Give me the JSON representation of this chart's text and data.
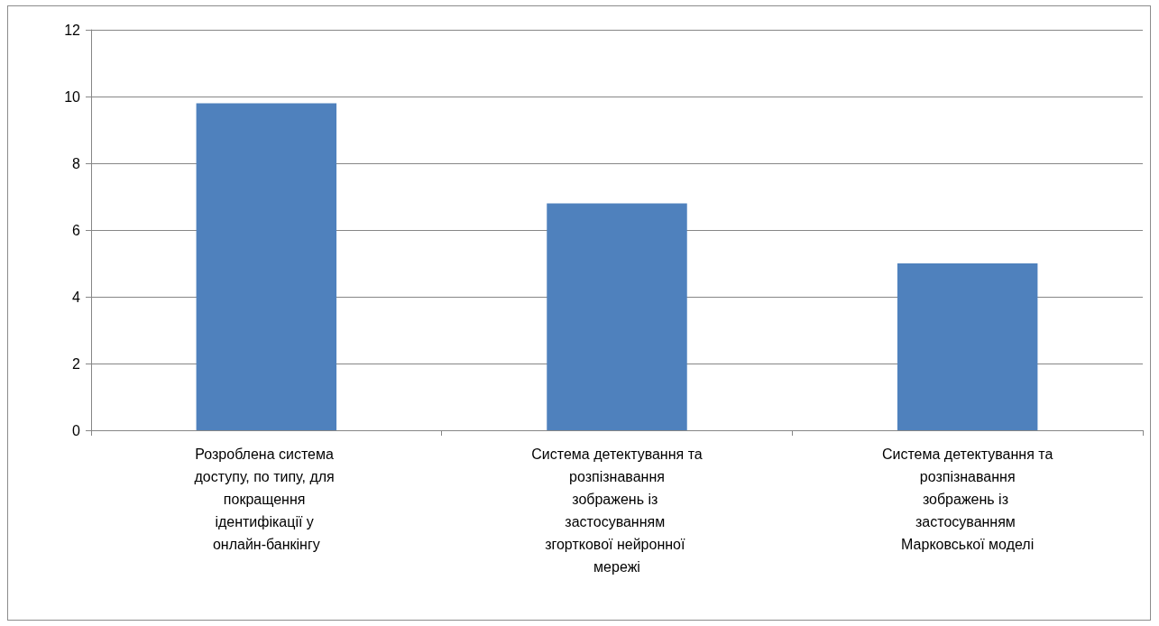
{
  "chart_data": {
    "type": "bar",
    "categories": [
      "Розроблена система доступу, по типу, для покращення ідентифікації у онлайн-банкінгу",
      "Система детектування та розпізнавання зображень із застосуванням згорткової нейронної мережі",
      "Система детектування та розпізнавання зображень із застосуванням Марковської моделі"
    ],
    "values": [
      9.8,
      6.8,
      5.0
    ],
    "color": "#4f81bd",
    "ylim": [
      0,
      12
    ],
    "yticks": [
      0,
      2,
      4,
      6,
      8,
      10,
      12
    ],
    "grid": "y"
  }
}
